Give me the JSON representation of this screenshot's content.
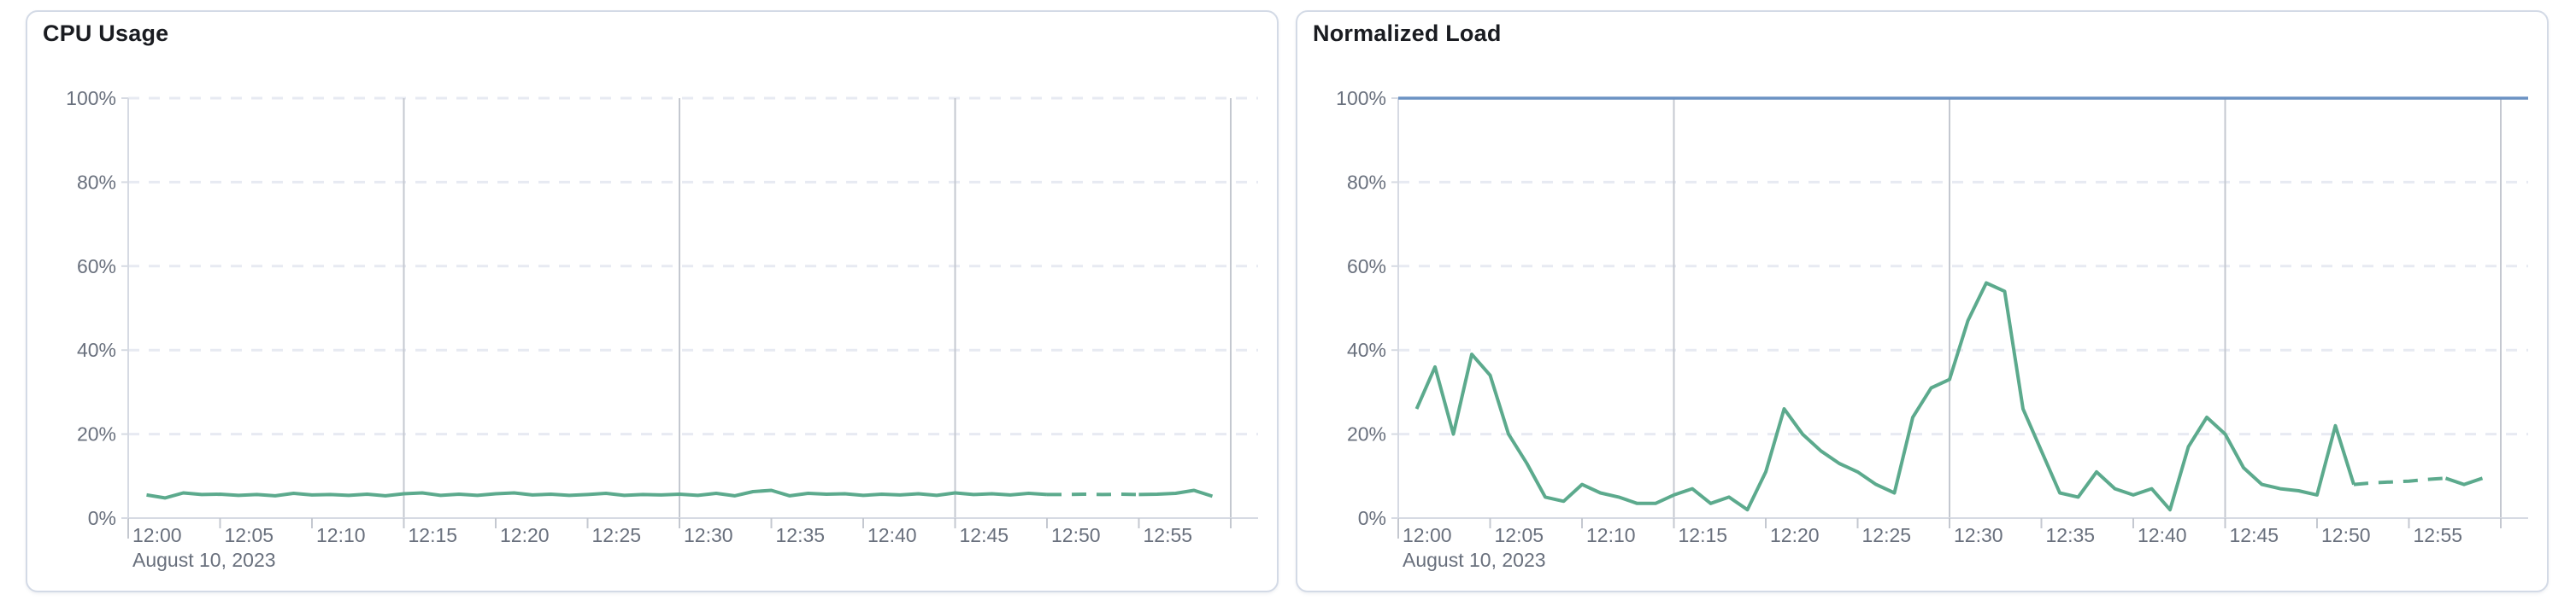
{
  "page": {
    "background": "#ffffff",
    "panel_border_color": "#d3dae6"
  },
  "colors": {
    "series_green": "#5caa8d",
    "threshold_blue": "#6b92c3",
    "grid_dashed": "#e7eaf2",
    "grid_solid_vertical": "#c4c8d0",
    "axis_line": "#d6dae3",
    "tick_label": "#69707d",
    "title_text": "#1a1c21"
  },
  "chart_data": [
    {
      "type": "line",
      "title": "CPU Usage",
      "date_label": "August 10, 2023",
      "xlabel": "",
      "ylabel": "",
      "ylim": [
        0,
        100
      ],
      "x_range_minutes": [
        0,
        60
      ],
      "x_start_time": "12:00",
      "grid": "horizontal-dashed-20pct, vertical-solid-15min",
      "legend": "none",
      "x_tick_labels": [
        "12:00",
        "12:05",
        "12:10",
        "12:15",
        "12:20",
        "12:25",
        "12:30",
        "12:35",
        "12:40",
        "12:45",
        "12:50",
        "12:55"
      ],
      "y_tick_labels": [
        "0%",
        "20%",
        "40%",
        "60%",
        "80%",
        "100%"
      ],
      "series": [
        {
          "name": "cpu-usage",
          "color": "#5caa8d",
          "unit": "%",
          "points_minute_value": [
            [
              1,
              5.5
            ],
            [
              2,
              4.8
            ],
            [
              3,
              6.0
            ],
            [
              4,
              5.6
            ],
            [
              5,
              5.7
            ],
            [
              6,
              5.4
            ],
            [
              7,
              5.6
            ],
            [
              8,
              5.3
            ],
            [
              9,
              5.9
            ],
            [
              10,
              5.5
            ],
            [
              11,
              5.6
            ],
            [
              12,
              5.4
            ],
            [
              13,
              5.7
            ],
            [
              14,
              5.3
            ],
            [
              15,
              5.8
            ],
            [
              16,
              6.0
            ],
            [
              17,
              5.4
            ],
            [
              18,
              5.7
            ],
            [
              19,
              5.4
            ],
            [
              20,
              5.8
            ],
            [
              21,
              6.0
            ],
            [
              22,
              5.5
            ],
            [
              23,
              5.7
            ],
            [
              24,
              5.4
            ],
            [
              25,
              5.6
            ],
            [
              26,
              5.9
            ],
            [
              27,
              5.4
            ],
            [
              28,
              5.6
            ],
            [
              29,
              5.5
            ],
            [
              30,
              5.7
            ],
            [
              31,
              5.4
            ],
            [
              32,
              5.9
            ],
            [
              33,
              5.3
            ],
            [
              34,
              6.3
            ],
            [
              35,
              6.6
            ],
            [
              36,
              5.3
            ],
            [
              37,
              5.9
            ],
            [
              38,
              5.7
            ],
            [
              39,
              5.8
            ],
            [
              40,
              5.4
            ],
            [
              41,
              5.7
            ],
            [
              42,
              5.5
            ],
            [
              43,
              5.8
            ],
            [
              44,
              5.4
            ],
            [
              45,
              6.0
            ],
            [
              46,
              5.6
            ],
            [
              47,
              5.8
            ],
            [
              48,
              5.5
            ],
            [
              49,
              5.9
            ],
            [
              50,
              5.6
            ],
            [
              51,
              5.6
            ],
            [
              52,
              5.7
            ],
            [
              53,
              5.6
            ],
            [
              54,
              5.7
            ],
            [
              55,
              5.6
            ],
            [
              56,
              5.7
            ],
            [
              57,
              5.9
            ],
            [
              58,
              6.6
            ],
            [
              59,
              5.2
            ]
          ],
          "dashed_segment_minutes": [
            50,
            55
          ]
        }
      ],
      "threshold": null
    },
    {
      "type": "line",
      "title": "Normalized Load",
      "date_label": "August 10, 2023",
      "xlabel": "",
      "ylabel": "",
      "ylim": [
        0,
        100
      ],
      "x_range_minutes": [
        0,
        60
      ],
      "x_start_time": "12:00",
      "grid": "horizontal-dashed-20pct, vertical-solid-15min",
      "legend": "none",
      "x_tick_labels": [
        "12:00",
        "12:05",
        "12:10",
        "12:15",
        "12:20",
        "12:25",
        "12:30",
        "12:35",
        "12:40",
        "12:45",
        "12:50",
        "12:55"
      ],
      "y_tick_labels": [
        "0%",
        "20%",
        "40%",
        "60%",
        "80%",
        "100%"
      ],
      "series": [
        {
          "name": "normalized-load",
          "color": "#5caa8d",
          "unit": "%",
          "points_minute_value": [
            [
              1,
              26
            ],
            [
              2,
              36
            ],
            [
              3,
              20
            ],
            [
              4,
              39
            ],
            [
              5,
              34
            ],
            [
              6,
              20
            ],
            [
              7,
              13
            ],
            [
              8,
              5
            ],
            [
              9,
              4
            ],
            [
              10,
              8
            ],
            [
              11,
              6
            ],
            [
              12,
              5
            ],
            [
              13,
              3.5
            ],
            [
              14,
              3.5
            ],
            [
              15,
              5.5
            ],
            [
              16,
              7
            ],
            [
              17,
              3.5
            ],
            [
              18,
              5
            ],
            [
              19,
              2
            ],
            [
              20,
              11
            ],
            [
              21,
              26
            ],
            [
              22,
              20
            ],
            [
              23,
              16
            ],
            [
              24,
              13
            ],
            [
              25,
              11
            ],
            [
              26,
              8
            ],
            [
              27,
              6
            ],
            [
              28,
              24
            ],
            [
              29,
              31
            ],
            [
              30,
              33
            ],
            [
              31,
              47
            ],
            [
              32,
              56
            ],
            [
              33,
              54
            ],
            [
              34,
              26
            ],
            [
              35,
              16
            ],
            [
              36,
              6
            ],
            [
              37,
              5
            ],
            [
              38,
              11
            ],
            [
              39,
              7
            ],
            [
              40,
              5.5
            ],
            [
              41,
              7
            ],
            [
              42,
              2
            ],
            [
              43,
              17
            ],
            [
              44,
              24
            ],
            [
              45,
              20
            ],
            [
              46,
              12
            ],
            [
              47,
              8
            ],
            [
              48,
              7
            ],
            [
              49,
              6.5
            ],
            [
              50,
              5.5
            ],
            [
              51,
              22
            ],
            [
              52,
              8
            ],
            [
              53,
              8.4
            ],
            [
              54,
              8.6
            ],
            [
              55,
              8.8
            ],
            [
              56,
              9.2
            ],
            [
              57,
              9.5
            ],
            [
              58,
              8
            ],
            [
              59,
              9.5
            ]
          ],
          "dashed_segment_minutes": [
            52,
            57
          ]
        }
      ],
      "threshold": {
        "value": 100,
        "color": "#6b92c3",
        "label": "100% threshold line"
      }
    }
  ]
}
